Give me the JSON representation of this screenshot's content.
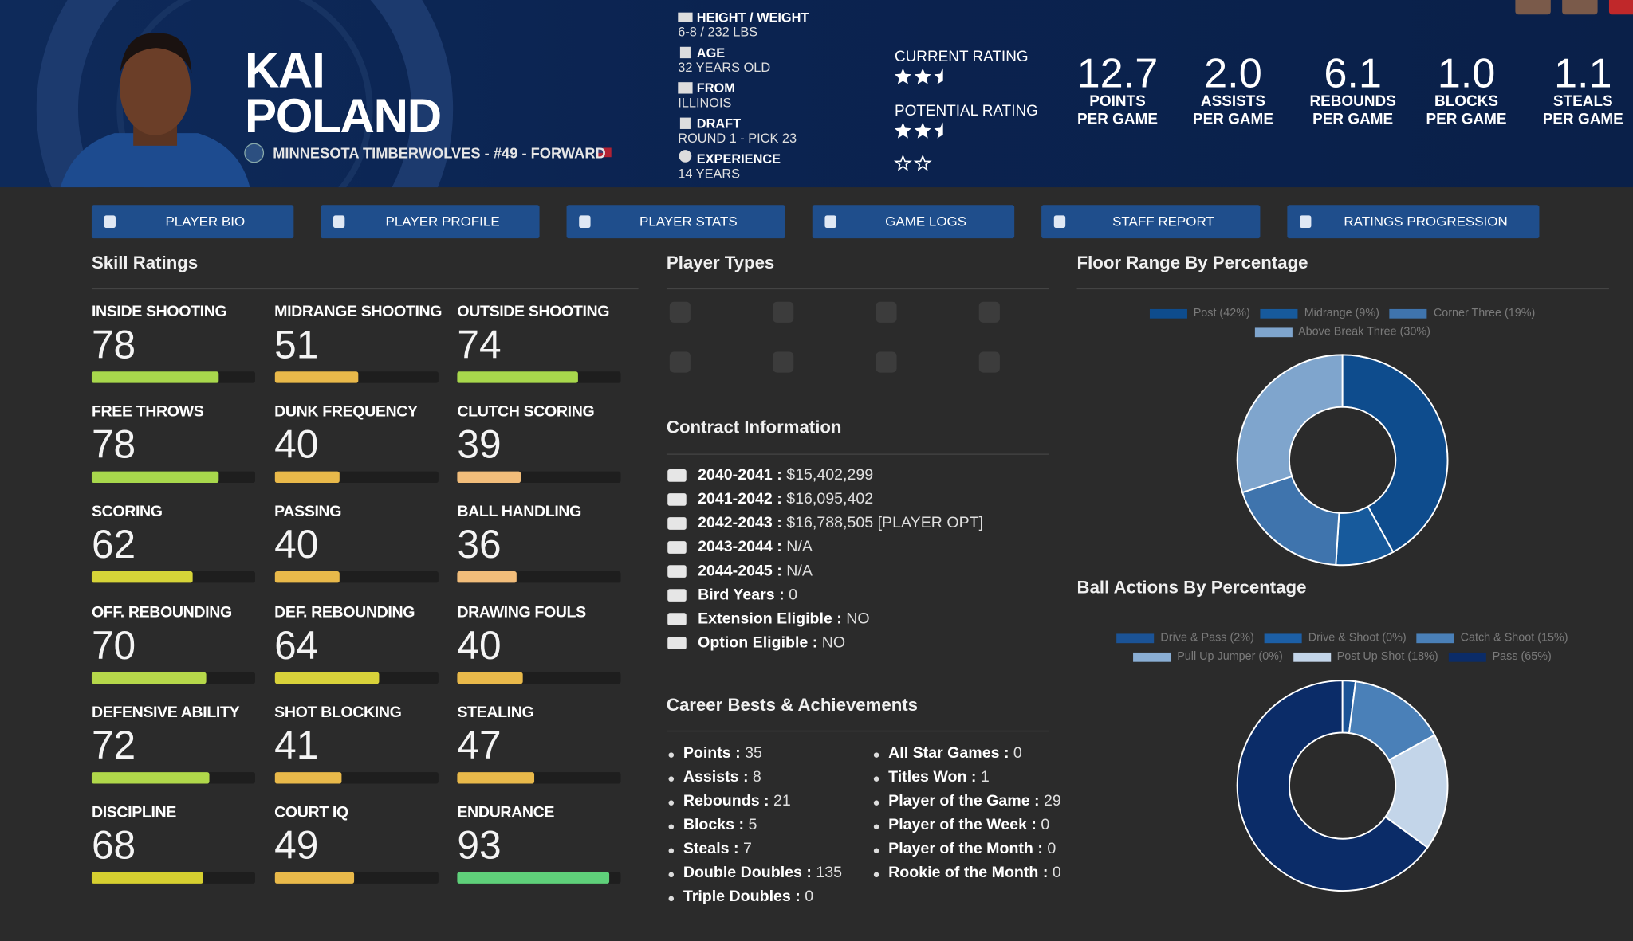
{
  "header": {
    "first_name": "KAI",
    "last_name": "POLAND",
    "team_line": "MINNESOTA TIMBERWOLVES - #49 - FORWARD"
  },
  "bio": [
    {
      "label": "HEIGHT / WEIGHT",
      "value": "6-8 / 232 LBS"
    },
    {
      "label": "AGE",
      "value": "32 YEARS OLD"
    },
    {
      "label": "FROM",
      "value": "ILLINOIS"
    },
    {
      "label": "DRAFT",
      "value": "ROUND 1 - PICK 23"
    },
    {
      "label": "EXPERIENCE",
      "value": "14 YEARS"
    }
  ],
  "ratings": [
    {
      "label": "CURRENT RATING",
      "stars": 2.5
    },
    {
      "label": "POTENTIAL RATING",
      "stars": 2.5
    }
  ],
  "stats": [
    {
      "value": "12.7",
      "label": "POINTS",
      "sub": "PER GAME"
    },
    {
      "value": "2.0",
      "label": "ASSISTS",
      "sub": "PER GAME"
    },
    {
      "value": "6.1",
      "label": "REBOUNDS",
      "sub": "PER GAME"
    },
    {
      "value": "1.0",
      "label": "BLOCKS",
      "sub": "PER GAME"
    },
    {
      "value": "1.1",
      "label": "STEALS",
      "sub": "PER GAME"
    }
  ],
  "nav": [
    "PLAYER BIO",
    "PLAYER PROFILE",
    "PLAYER STATS",
    "GAME LOGS",
    "STAFF REPORT",
    "RATINGS PROGRESSION"
  ],
  "skill_ratings": {
    "title": "Skill Ratings",
    "items": [
      {
        "label": "INSIDE SHOOTING",
        "value": 78,
        "color": "#a8d84c"
      },
      {
        "label": "MIDRANGE SHOOTING",
        "value": 51,
        "color": "#e9b94a"
      },
      {
        "label": "OUTSIDE SHOOTING",
        "value": 74,
        "color": "#a8d84c"
      },
      {
        "label": "FREE THROWS",
        "value": 78,
        "color": "#a8d84c"
      },
      {
        "label": "DUNK FREQUENCY",
        "value": 40,
        "color": "#e9b94a"
      },
      {
        "label": "CLUTCH SCORING",
        "value": 39,
        "color": "#f2bd7a"
      },
      {
        "label": "SCORING",
        "value": 62,
        "color": "#d6d438"
      },
      {
        "label": "PASSING",
        "value": 40,
        "color": "#e9b94a"
      },
      {
        "label": "BALL HANDLING",
        "value": 36,
        "color": "#f2bd7a"
      },
      {
        "label": "OFF. REBOUNDING",
        "value": 70,
        "color": "#b6d84a"
      },
      {
        "label": "DEF. REBOUNDING",
        "value": 64,
        "color": "#d9d23a"
      },
      {
        "label": "DRAWING FOULS",
        "value": 40,
        "color": "#e9b94a"
      },
      {
        "label": "DEFENSIVE ABILITY",
        "value": 72,
        "color": "#b0d84a"
      },
      {
        "label": "SHOT BLOCKING",
        "value": 41,
        "color": "#e9b94a"
      },
      {
        "label": "STEALING",
        "value": 47,
        "color": "#e9b94a"
      },
      {
        "label": "DISCIPLINE",
        "value": 68,
        "color": "#d6cf30"
      },
      {
        "label": "COURT IQ",
        "value": 49,
        "color": "#e9b94a"
      },
      {
        "label": "ENDURANCE",
        "value": 93,
        "color": "#5fd07a"
      }
    ]
  },
  "player_types": {
    "title": "Player Types"
  },
  "contract": {
    "title": "Contract Information",
    "items": [
      {
        "label": "2040-2041 :",
        "value": "$15,402,299"
      },
      {
        "label": "2041-2042 :",
        "value": "$16,095,402"
      },
      {
        "label": "2042-2043 :",
        "value": "$16,788,505 [PLAYER OPT]"
      },
      {
        "label": "2043-2044 :",
        "value": "N/A"
      },
      {
        "label": "2044-2045 :",
        "value": "N/A"
      },
      {
        "label": "Bird Years :",
        "value": 0
      },
      {
        "label": "Extension Eligible :",
        "value": "NO"
      },
      {
        "label": "Option Eligible :",
        "value": "NO"
      }
    ]
  },
  "career": {
    "title": "Career Bests & Achievements",
    "items": [
      {
        "label": "Points :",
        "value": 35
      },
      {
        "label": "Assists :",
        "value": 8
      },
      {
        "label": "Rebounds :",
        "value": 21
      },
      {
        "label": "Blocks :",
        "value": 5
      },
      {
        "label": "Steals :",
        "value": 7
      },
      {
        "label": "Double Doubles :",
        "value": 135
      },
      {
        "label": "Triple Doubles :",
        "value": 0
      },
      {
        "label": "All Star Games :",
        "value": 0
      },
      {
        "label": "Titles Won :",
        "value": 1
      },
      {
        "label": "Player of the Game :",
        "value": 29
      },
      {
        "label": "Player of the Week :",
        "value": 0
      },
      {
        "label": "Player of the Month :",
        "value": 0
      },
      {
        "label": "Rookie of the Month :",
        "value": 0
      }
    ]
  },
  "chart_data": [
    {
      "type": "pie",
      "title": "Floor Range By Percentage",
      "categories": [
        "Post (42%)",
        "Midrange (9%)",
        "Corner Three (19%)",
        "Above Break Three (30%)"
      ],
      "values": [
        42,
        9,
        19,
        30
      ],
      "colors": [
        "#0e4c8d",
        "#175a9c",
        "#3f74ad",
        "#7fa5cd"
      ]
    },
    {
      "type": "pie",
      "title": "Ball Actions By Percentage",
      "categories": [
        "Drive & Pass (2%)",
        "Drive & Shoot (0%)",
        "Catch & Shoot (15%)",
        "Pull Up Jumper (0%)",
        "Post Up Shot (18%)",
        "Pass (65%)"
      ],
      "values": [
        2,
        0,
        15,
        0,
        18,
        65
      ],
      "colors": [
        "#1b5396",
        "#1c5fa6",
        "#4a80b8",
        "#8aaed4",
        "#c3d5e9",
        "#0b2c68"
      ]
    }
  ]
}
